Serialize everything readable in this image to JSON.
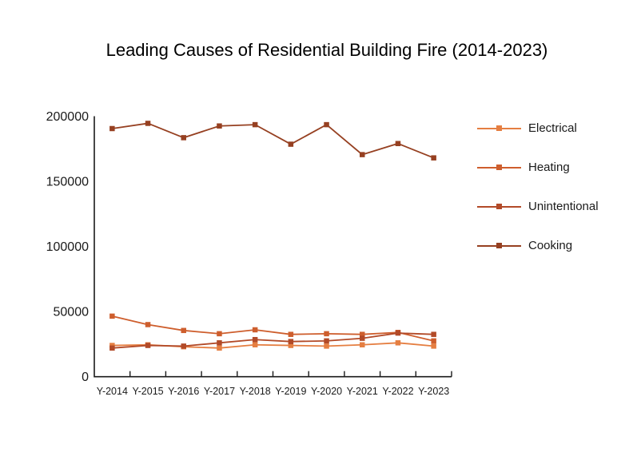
{
  "header": {
    "title": "Leading Causes of Residential Building Fire (2014-2023)"
  },
  "chart_data": {
    "type": "line",
    "title": "Leading Causes of Residential Building Fire (2014-2023)",
    "xlabel": "",
    "ylabel": "",
    "categories": [
      "Y-2014",
      "Y-2015",
      "Y-2016",
      "Y-2017",
      "Y-2018",
      "Y-2019",
      "Y-2020",
      "Y-2021",
      "Y-2022",
      "Y-2023"
    ],
    "series": [
      {
        "name": "Electrical",
        "color": "#E57E41",
        "marker": "square",
        "values": [
          24000,
          24500,
          23000,
          22000,
          24500,
          24000,
          23500,
          24500,
          26000,
          23500
        ]
      },
      {
        "name": "Heating",
        "color": "#CE5E2D",
        "marker": "square",
        "values": [
          46500,
          40000,
          35500,
          33000,
          36000,
          32500,
          33000,
          32500,
          34000,
          27500
        ]
      },
      {
        "name": "Unintentional",
        "color": "#B24A28",
        "marker": "square",
        "values": [
          22000,
          24000,
          23500,
          26000,
          28500,
          27000,
          27500,
          29500,
          33500,
          32500
        ]
      },
      {
        "name": "Cooking",
        "color": "#964021",
        "marker": "square",
        "values": [
          190500,
          194500,
          183500,
          192500,
          193500,
          178500,
          193500,
          170500,
          179000,
          168000
        ]
      }
    ],
    "ylim": [
      0,
      200000
    ],
    "yticks": [
      0,
      50000,
      100000,
      150000,
      200000
    ],
    "grid": false,
    "legend_position": "right",
    "axis_color": "#1a1a1a"
  }
}
